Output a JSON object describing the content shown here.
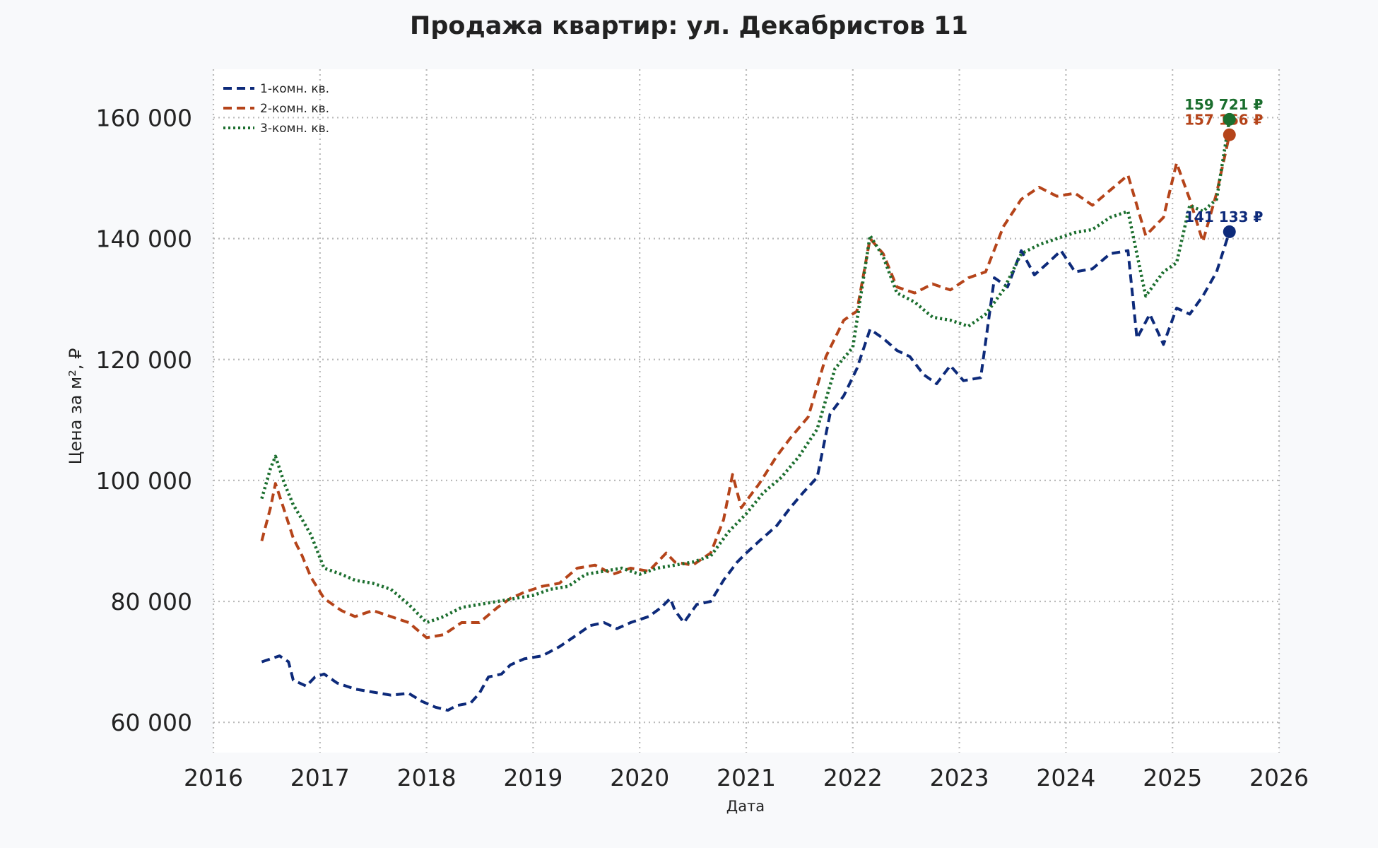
{
  "chart_data": {
    "type": "line",
    "title": "Продажа квартир: ул. Декабристов 11",
    "xlabel": "Дата",
    "ylabel": "Цена за м², ₽",
    "xlim": [
      "2016-01-01",
      "2026-01-01"
    ],
    "ylim": [
      55000,
      168000
    ],
    "x_ticks": [
      "2016",
      "2017",
      "2018",
      "2019",
      "2020",
      "2021",
      "2022",
      "2023",
      "2024",
      "2025",
      "2026"
    ],
    "y_ticks": [
      60000,
      80000,
      100000,
      120000,
      140000,
      160000
    ],
    "y_tick_labels": [
      "60 000",
      "80 000",
      "100 000",
      "120 000",
      "140 000",
      "160 000"
    ],
    "grid": true,
    "legend_position": "top-left",
    "series": [
      {
        "name": "1-комн. кв.",
        "color": "#0d2a7a",
        "dash": "dashed",
        "points": [
          [
            "2016-06-15",
            70000
          ],
          [
            "2016-07-15",
            70500
          ],
          [
            "2016-08-15",
            71000
          ],
          [
            "2016-09-15",
            70000
          ],
          [
            "2016-10-01",
            67000
          ],
          [
            "2016-11-15",
            66000
          ],
          [
            "2016-12-15",
            67500
          ],
          [
            "2017-01-15",
            68000
          ],
          [
            "2017-03-01",
            66500
          ],
          [
            "2017-05-01",
            65500
          ],
          [
            "2017-07-01",
            65000
          ],
          [
            "2017-09-01",
            64500
          ],
          [
            "2017-11-01",
            64800
          ],
          [
            "2017-12-15",
            63500
          ],
          [
            "2018-02-01",
            62500
          ],
          [
            "2018-03-15",
            62000
          ],
          [
            "2018-04-15",
            62800
          ],
          [
            "2018-06-01",
            63200
          ],
          [
            "2018-07-01",
            64800
          ],
          [
            "2018-08-01",
            67500
          ],
          [
            "2018-09-15",
            68000
          ],
          [
            "2018-10-15",
            69500
          ],
          [
            "2018-12-01",
            70500
          ],
          [
            "2019-02-01",
            71000
          ],
          [
            "2019-04-01",
            72500
          ],
          [
            "2019-06-01",
            74500
          ],
          [
            "2019-07-15",
            76000
          ],
          [
            "2019-09-01",
            76500
          ],
          [
            "2019-10-15",
            75500
          ],
          [
            "2019-12-01",
            76500
          ],
          [
            "2020-02-01",
            77500
          ],
          [
            "2020-03-15",
            79000
          ],
          [
            "2020-04-15",
            80500
          ],
          [
            "2020-05-01",
            78500
          ],
          [
            "2020-06-01",
            76500
          ],
          [
            "2020-07-15",
            79500
          ],
          [
            "2020-09-01",
            80000
          ],
          [
            "2020-10-15",
            83500
          ],
          [
            "2020-12-01",
            86500
          ],
          [
            "2021-01-01",
            88000
          ],
          [
            "2021-02-15",
            90000
          ],
          [
            "2021-04-15",
            92500
          ],
          [
            "2021-06-01",
            95500
          ],
          [
            "2021-07-15",
            98000
          ],
          [
            "2021-09-01",
            100500
          ],
          [
            "2021-10-15",
            111000
          ],
          [
            "2021-12-01",
            114000
          ],
          [
            "2022-01-15",
            118500
          ],
          [
            "2022-03-01",
            125000
          ],
          [
            "2022-04-15",
            123500
          ],
          [
            "2022-06-01",
            121500
          ],
          [
            "2022-07-15",
            120500
          ],
          [
            "2022-09-01",
            117500
          ],
          [
            "2022-10-15",
            116000
          ],
          [
            "2022-12-01",
            119000
          ],
          [
            "2023-01-15",
            116500
          ],
          [
            "2023-03-15",
            117000
          ],
          [
            "2023-05-01",
            133500
          ],
          [
            "2023-06-15",
            132000
          ],
          [
            "2023-08-01",
            138000
          ],
          [
            "2023-09-15",
            134000
          ],
          [
            "2023-11-01",
            136000
          ],
          [
            "2023-12-15",
            138000
          ],
          [
            "2024-02-01",
            134500
          ],
          [
            "2024-04-01",
            135000
          ],
          [
            "2024-06-01",
            137500
          ],
          [
            "2024-08-01",
            138000
          ],
          [
            "2024-09-01",
            123500
          ],
          [
            "2024-10-15",
            127500
          ],
          [
            "2024-12-01",
            122500
          ],
          [
            "2025-01-15",
            128500
          ],
          [
            "2025-03-01",
            127500
          ],
          [
            "2025-04-15",
            130500
          ],
          [
            "2025-06-01",
            134500
          ],
          [
            "2025-07-15",
            141133
          ]
        ]
      },
      {
        "name": "2-комн. кв.",
        "color": "#b5441a",
        "dash": "dashed",
        "points": [
          [
            "2016-06-15",
            90000
          ],
          [
            "2016-07-15",
            95500
          ],
          [
            "2016-08-01",
            99500
          ],
          [
            "2016-09-01",
            95000
          ],
          [
            "2016-10-01",
            90500
          ],
          [
            "2016-11-01",
            87500
          ],
          [
            "2016-12-01",
            84000
          ],
          [
            "2017-01-15",
            80500
          ],
          [
            "2017-03-15",
            78500
          ],
          [
            "2017-05-01",
            77500
          ],
          [
            "2017-07-01",
            78500
          ],
          [
            "2017-09-01",
            77500
          ],
          [
            "2017-11-01",
            76500
          ],
          [
            "2018-01-01",
            74000
          ],
          [
            "2018-03-01",
            74500
          ],
          [
            "2018-05-01",
            76500
          ],
          [
            "2018-07-01",
            76500
          ],
          [
            "2018-09-01",
            79000
          ],
          [
            "2018-10-15",
            80500
          ],
          [
            "2018-12-01",
            81500
          ],
          [
            "2019-02-01",
            82500
          ],
          [
            "2019-04-01",
            83000
          ],
          [
            "2019-06-01",
            85500
          ],
          [
            "2019-08-01",
            86000
          ],
          [
            "2019-10-01",
            84500
          ],
          [
            "2019-12-01",
            85500
          ],
          [
            "2020-02-01",
            85000
          ],
          [
            "2020-04-01",
            88000
          ],
          [
            "2020-05-01",
            86500
          ],
          [
            "2020-07-01",
            86000
          ],
          [
            "2020-09-01",
            88000
          ],
          [
            "2020-10-15",
            93500
          ],
          [
            "2020-11-15",
            101000
          ],
          [
            "2020-12-15",
            95500
          ],
          [
            "2021-02-15",
            99500
          ],
          [
            "2021-04-15",
            104000
          ],
          [
            "2021-06-01",
            107000
          ],
          [
            "2021-08-01",
            110500
          ],
          [
            "2021-10-01",
            120500
          ],
          [
            "2021-12-01",
            126500
          ],
          [
            "2022-01-15",
            128000
          ],
          [
            "2022-03-01",
            140000
          ],
          [
            "2022-04-15",
            137500
          ],
          [
            "2022-06-01",
            132000
          ],
          [
            "2022-08-01",
            131000
          ],
          [
            "2022-10-01",
            132500
          ],
          [
            "2022-12-01",
            131500
          ],
          [
            "2023-02-01",
            133500
          ],
          [
            "2023-04-01",
            134500
          ],
          [
            "2023-06-01",
            142000
          ],
          [
            "2023-08-01",
            146500
          ],
          [
            "2023-10-01",
            148500
          ],
          [
            "2023-12-01",
            147000
          ],
          [
            "2024-02-01",
            147500
          ],
          [
            "2024-04-01",
            145500
          ],
          [
            "2024-06-01",
            148000
          ],
          [
            "2024-08-01",
            150500
          ],
          [
            "2024-10-01",
            140500
          ],
          [
            "2024-12-01",
            143500
          ],
          [
            "2025-01-15",
            152500
          ],
          [
            "2025-03-01",
            146500
          ],
          [
            "2025-04-15",
            139500
          ],
          [
            "2025-06-01",
            147500
          ],
          [
            "2025-07-15",
            157166
          ]
        ]
      },
      {
        "name": "3-комн. кв.",
        "color": "#1b6e2e",
        "dash": "dotted",
        "points": [
          [
            "2016-06-15",
            97000
          ],
          [
            "2016-07-15",
            102000
          ],
          [
            "2016-08-01",
            104000
          ],
          [
            "2016-09-01",
            99500
          ],
          [
            "2016-10-01",
            96000
          ],
          [
            "2016-11-01",
            93500
          ],
          [
            "2016-12-01",
            91000
          ],
          [
            "2017-01-15",
            85500
          ],
          [
            "2017-03-15",
            84500
          ],
          [
            "2017-05-01",
            83500
          ],
          [
            "2017-07-01",
            83000
          ],
          [
            "2017-09-01",
            82000
          ],
          [
            "2017-11-01",
            79500
          ],
          [
            "2018-01-01",
            76500
          ],
          [
            "2018-03-01",
            77500
          ],
          [
            "2018-05-01",
            79000
          ],
          [
            "2018-07-01",
            79500
          ],
          [
            "2018-09-01",
            80000
          ],
          [
            "2018-11-01",
            80500
          ],
          [
            "2019-01-01",
            81000
          ],
          [
            "2019-03-01",
            82000
          ],
          [
            "2019-05-01",
            82500
          ],
          [
            "2019-07-01",
            84500
          ],
          [
            "2019-09-01",
            85000
          ],
          [
            "2019-11-01",
            85500
          ],
          [
            "2020-01-01",
            84500
          ],
          [
            "2020-03-01",
            85500
          ],
          [
            "2020-05-01",
            86000
          ],
          [
            "2020-07-01",
            86500
          ],
          [
            "2020-09-01",
            87500
          ],
          [
            "2020-11-01",
            91500
          ],
          [
            "2021-01-01",
            94500
          ],
          [
            "2021-03-01",
            98000
          ],
          [
            "2021-05-01",
            100500
          ],
          [
            "2021-07-01",
            104000
          ],
          [
            "2021-09-01",
            108500
          ],
          [
            "2021-11-01",
            118500
          ],
          [
            "2022-01-01",
            122000
          ],
          [
            "2022-03-01",
            140500
          ],
          [
            "2022-04-15",
            137000
          ],
          [
            "2022-06-01",
            131000
          ],
          [
            "2022-08-01",
            129500
          ],
          [
            "2022-10-01",
            127000
          ],
          [
            "2022-12-01",
            126500
          ],
          [
            "2023-02-01",
            125500
          ],
          [
            "2023-04-01",
            127500
          ],
          [
            "2023-06-01",
            131500
          ],
          [
            "2023-08-01",
            137500
          ],
          [
            "2023-10-01",
            139000
          ],
          [
            "2023-12-01",
            140000
          ],
          [
            "2024-02-01",
            141000
          ],
          [
            "2024-04-01",
            141500
          ],
          [
            "2024-06-01",
            143500
          ],
          [
            "2024-08-01",
            144500
          ],
          [
            "2024-10-01",
            130500
          ],
          [
            "2024-12-01",
            134500
          ],
          [
            "2025-01-15",
            136000
          ],
          [
            "2025-03-01",
            145500
          ],
          [
            "2025-04-15",
            144500
          ],
          [
            "2025-06-01",
            146500
          ],
          [
            "2025-07-15",
            159721
          ]
        ]
      }
    ],
    "end_labels": [
      {
        "series": "1-комн. кв.",
        "date": "2025-07-15",
        "value": 141133,
        "text": "141 133 ₽",
        "color": "#0d2a7a"
      },
      {
        "series": "2-комн. кв.",
        "date": "2025-07-15",
        "value": 157166,
        "text": "157 166 ₽",
        "color": "#b5441a"
      },
      {
        "series": "3-комн. кв.",
        "date": "2025-07-15",
        "value": 159721,
        "text": "159 721 ₽",
        "color": "#1b6e2e"
      }
    ]
  }
}
